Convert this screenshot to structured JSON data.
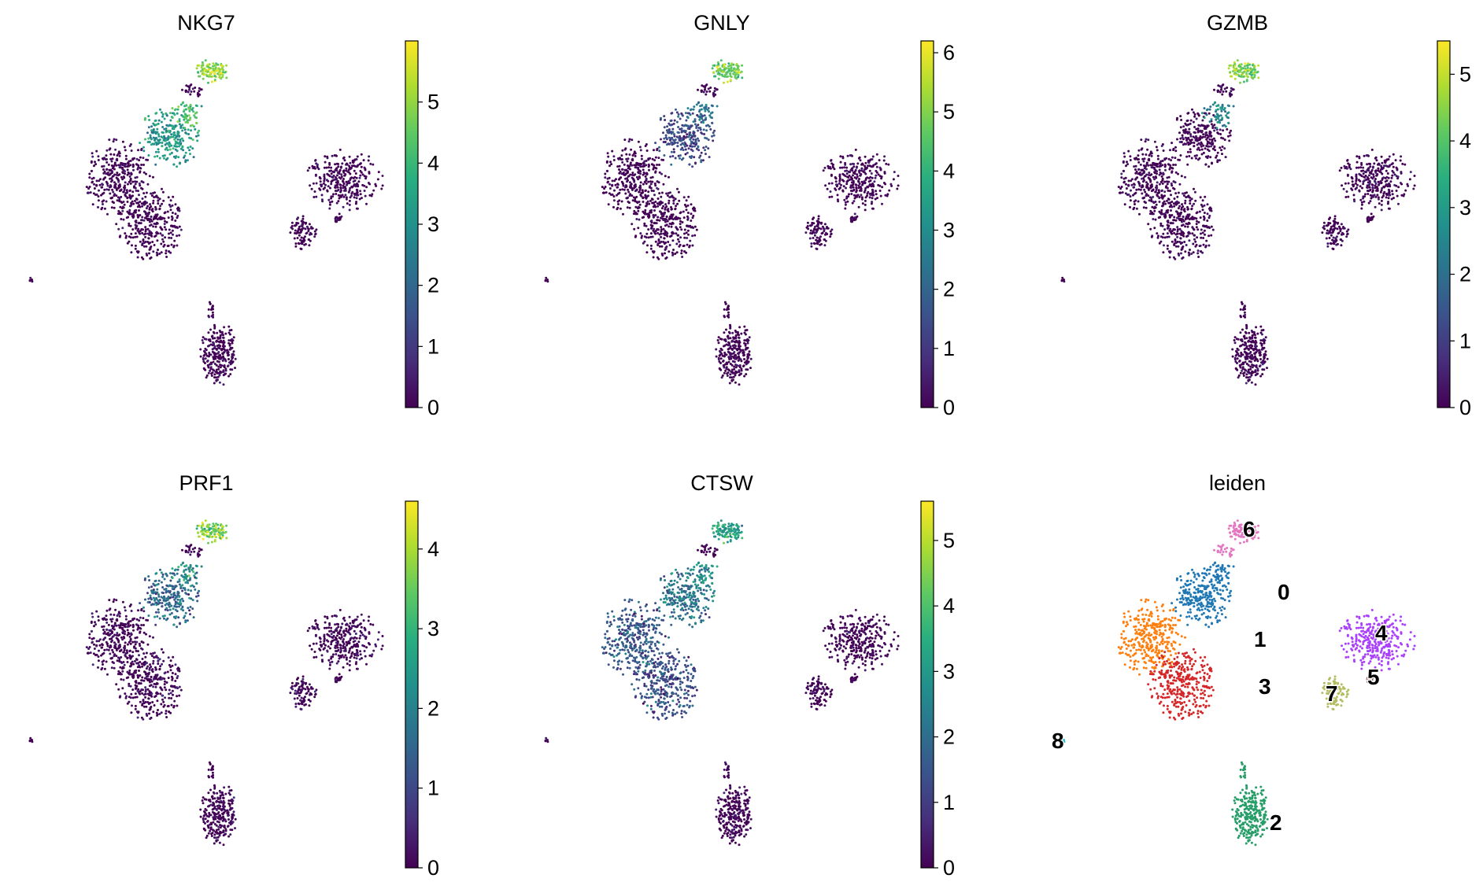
{
  "chart_data": [
    {
      "type": "scatter",
      "title": "NKG7",
      "colormap": "viridis",
      "colorbar": {
        "min": 0,
        "max": 6.0,
        "ticks": [
          0,
          1,
          2,
          3,
          4,
          5
        ]
      },
      "hotspots": [
        {
          "cluster": "6",
          "value": 5.1
        },
        {
          "cluster": "0_top",
          "value": 4.2
        },
        {
          "cluster": "0",
          "value": 3.2
        }
      ]
    },
    {
      "type": "scatter",
      "title": "GNLY",
      "colormap": "viridis",
      "colorbar": {
        "min": 0,
        "max": 6.2,
        "ticks": [
          0,
          1,
          2,
          3,
          4,
          5,
          6
        ]
      },
      "hotspots": [
        {
          "cluster": "6",
          "value": 4.8
        },
        {
          "cluster": "0_top",
          "value": 2.3
        },
        {
          "cluster": "0",
          "value": 1.3
        }
      ]
    },
    {
      "type": "scatter",
      "title": "GZMB",
      "colormap": "viridis",
      "colorbar": {
        "min": 0,
        "max": 5.5,
        "ticks": [
          0,
          1,
          2,
          3,
          4,
          5
        ]
      },
      "hotspots": [
        {
          "cluster": "6",
          "value": 4.4
        },
        {
          "cluster": "0_top",
          "value": 2.6
        }
      ]
    },
    {
      "type": "scatter",
      "title": "PRF1",
      "colormap": "viridis",
      "colorbar": {
        "min": 0,
        "max": 4.6,
        "ticks": [
          0,
          1,
          2,
          3,
          4
        ]
      },
      "hotspots": [
        {
          "cluster": "6",
          "value": 3.7
        },
        {
          "cluster": "0_top",
          "value": 2.3
        },
        {
          "cluster": "0",
          "value": 1.6
        }
      ]
    },
    {
      "type": "scatter",
      "title": "CTSW",
      "colormap": "viridis",
      "colorbar": {
        "min": 0,
        "max": 5.6,
        "ticks": [
          0,
          1,
          2,
          3,
          4,
          5
        ]
      },
      "hotspots": [
        {
          "cluster": "6",
          "value": 3.2
        },
        {
          "cluster": "0_top",
          "value": 2.8
        },
        {
          "cluster": "0",
          "value": 2.2
        },
        {
          "cluster": "1",
          "value": 1.5
        },
        {
          "cluster": "3",
          "value": 1.3
        }
      ]
    },
    {
      "type": "scatter",
      "title": "leiden",
      "categories": [
        "0",
        "1",
        "2",
        "3",
        "4",
        "5",
        "6",
        "7",
        "8"
      ],
      "colors": {
        "0": "#1f77b4",
        "1": "#ff7f0e",
        "2": "#279e68",
        "3": "#d62728",
        "4": "#aa40fc",
        "5": "#8c564b",
        "6": "#e377c2",
        "7": "#b5bd61",
        "8": "#17becf"
      }
    }
  ]
}
